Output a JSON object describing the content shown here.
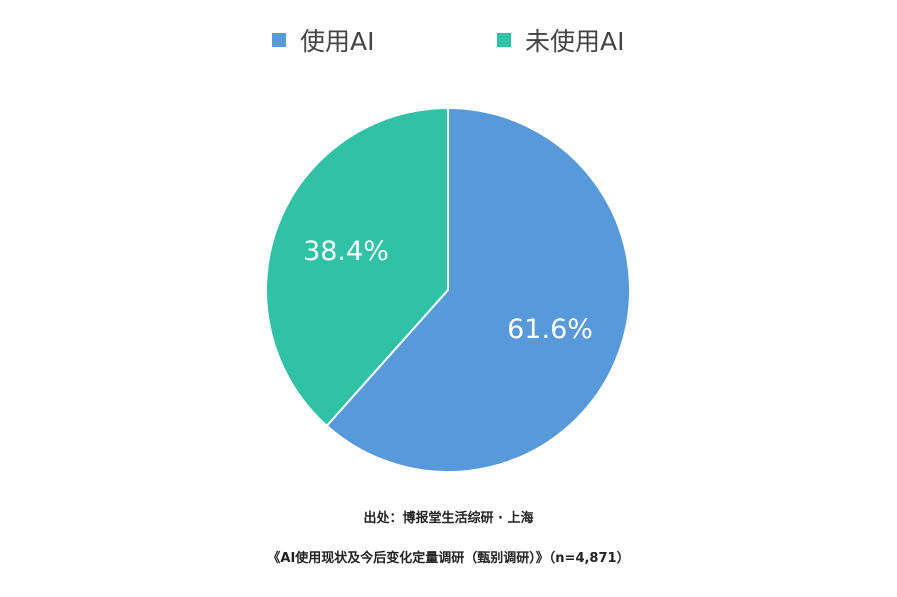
{
  "chart_data": {
    "type": "pie",
    "legend_position": "top",
    "series": [
      {
        "name": "使用AI",
        "value": 61.6,
        "label": "61.6%",
        "color": "#5899DA"
      },
      {
        "name": "未使用AI",
        "value": 38.4,
        "label": "38.4%",
        "color": "#31C1A5"
      }
    ]
  },
  "source": "出处：博报堂生活综研 · 上海",
  "survey": "《AI使用现状及今后变化定量调研（甄别调研）》（n=4,871）"
}
